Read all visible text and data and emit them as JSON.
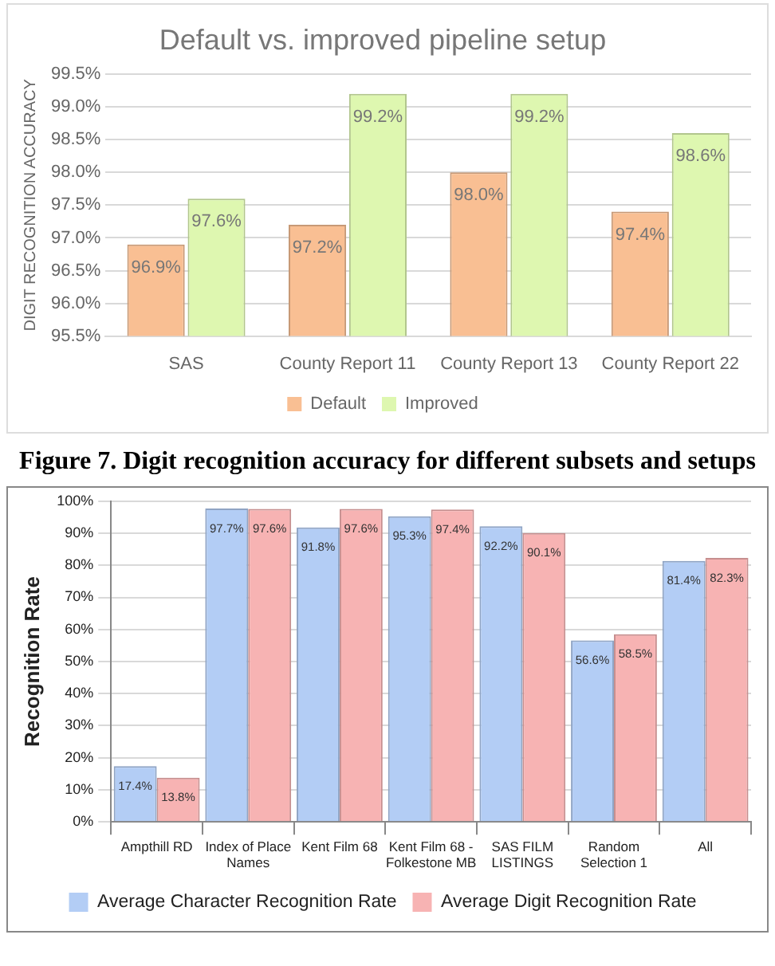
{
  "chart_data": [
    {
      "type": "bar",
      "title": "Default vs. improved pipeline setup",
      "ylabel": "DIGIT RECOGNITION ACCURACY",
      "categories": [
        "SAS",
        "County Report 11",
        "County Report 13",
        "County Report 22"
      ],
      "series": [
        {
          "name": "Default",
          "color": "#f9bf93",
          "values": [
            96.9,
            97.2,
            98.0,
            97.4
          ],
          "value_labels": [
            "96.9%",
            "97.2%",
            "98.0%",
            "97.4%"
          ]
        },
        {
          "name": "Improved",
          "color": "#def7b0",
          "values": [
            97.6,
            99.2,
            99.2,
            98.6
          ],
          "value_labels": [
            "97.6%",
            "99.2%",
            "99.2%",
            "98.6%"
          ]
        }
      ],
      "ylim": [
        95.5,
        99.5
      ],
      "yticks": [
        {
          "value": 95.5,
          "label": "95.5%"
        },
        {
          "value": 96.0,
          "label": "96.0%"
        },
        {
          "value": 96.5,
          "label": "96.5%"
        },
        {
          "value": 97.0,
          "label": "97.0%"
        },
        {
          "value": 97.5,
          "label": "97.5%"
        },
        {
          "value": 98.0,
          "label": "98.0%"
        },
        {
          "value": 98.5,
          "label": "98.5%"
        },
        {
          "value": 99.0,
          "label": "99.0%"
        },
        {
          "value": 99.5,
          "label": "99.5%"
        }
      ],
      "grid": "y",
      "legend": "bottom",
      "annotations": [
        "Figure 7. Digit recognition accuracy for different subsets and setups"
      ]
    },
    {
      "type": "bar",
      "ylabel": "Recognition Rate",
      "categories": [
        "Ampthill RD",
        "Index of Place Names",
        "Kent Film 68",
        "Kent Film 68 - Folkestone MB",
        "SAS FILM LISTINGS",
        "Random Selection 1",
        "All"
      ],
      "series": [
        {
          "name": "Average Character Recognition Rate",
          "color": "#b3cdf5",
          "values": [
            17.4,
            97.7,
            91.8,
            95.3,
            92.2,
            56.6,
            81.4
          ],
          "value_labels": [
            "17.4%",
            "97.7%",
            "91.8%",
            "95.3%",
            "92.2%",
            "56.6%",
            "81.4%"
          ]
        },
        {
          "name": "Average Digit Recognition Rate",
          "color": "#f7b3b3",
          "values": [
            13.8,
            97.6,
            97.6,
            97.4,
            90.1,
            58.5,
            82.3
          ],
          "value_labels": [
            "13.8%",
            "97.6%",
            "97.6%",
            "97.4%",
            "90.1%",
            "58.5%",
            "82.3%"
          ]
        }
      ],
      "ylim": [
        0,
        100
      ],
      "yticks": [
        {
          "value": 0,
          "label": "0%"
        },
        {
          "value": 10,
          "label": "10%"
        },
        {
          "value": 20,
          "label": "20%"
        },
        {
          "value": 30,
          "label": "30%"
        },
        {
          "value": 40,
          "label": "40%"
        },
        {
          "value": 50,
          "label": "50%"
        },
        {
          "value": 60,
          "label": "60%"
        },
        {
          "value": 70,
          "label": "70%"
        },
        {
          "value": 80,
          "label": "80%"
        },
        {
          "value": 90,
          "label": "90%"
        },
        {
          "value": 100,
          "label": "100%"
        }
      ],
      "grid": "y",
      "legend": "bottom"
    }
  ]
}
